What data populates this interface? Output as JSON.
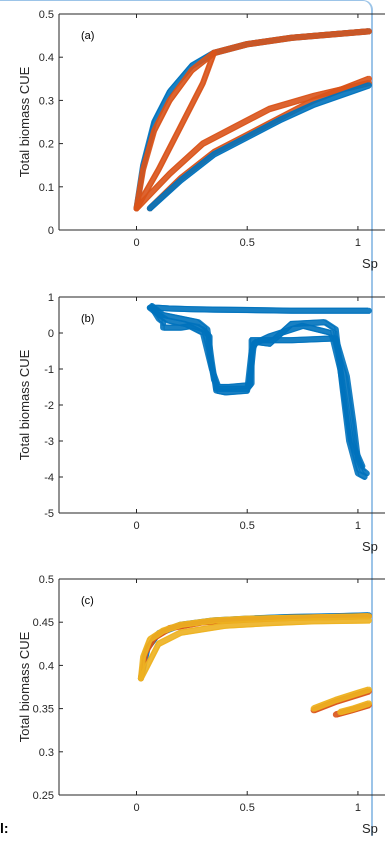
{
  "stray_text": "l:",
  "chart_data": [
    {
      "type": "line",
      "panel_label": "(a)",
      "ylabel": "Total biomass CUE",
      "xlabel": "Sp",
      "ylim": [
        0,
        0.5
      ],
      "xlim": [
        -0.35,
        1.05
      ],
      "yticks": [
        "0",
        "0.1",
        "0.2",
        "0.3",
        "0.4",
        "0.5"
      ],
      "xticks": [
        "0",
        "0.5",
        "1"
      ],
      "grid": false,
      "series": [
        {
          "color": "#0072BD",
          "x": [
            0.0,
            0.03,
            0.08,
            0.15,
            0.25,
            0.35,
            0.5,
            0.7,
            1.05
          ],
          "y": [
            0.05,
            0.15,
            0.25,
            0.32,
            0.38,
            0.41,
            0.43,
            0.445,
            0.46
          ]
        },
        {
          "color": "#D95319",
          "x": [
            0.0,
            0.03,
            0.08,
            0.15,
            0.25,
            0.35,
            0.5,
            0.7,
            1.05
          ],
          "y": [
            0.05,
            0.14,
            0.23,
            0.3,
            0.37,
            0.41,
            0.43,
            0.445,
            0.46
          ]
        },
        {
          "color": "#D95319",
          "x": [
            0.0,
            0.1,
            0.2,
            0.3,
            0.35
          ],
          "y": [
            0.05,
            0.14,
            0.24,
            0.34,
            0.41
          ]
        },
        {
          "color": "#D95319",
          "x": [
            0.06,
            0.2,
            0.35,
            0.5,
            0.65,
            0.8,
            1.05
          ],
          "y": [
            0.05,
            0.12,
            0.18,
            0.22,
            0.26,
            0.3,
            0.35
          ]
        },
        {
          "color": "#D95319",
          "x": [
            0.0,
            0.15,
            0.3,
            0.45,
            0.6,
            0.8,
            1.05
          ],
          "y": [
            0.05,
            0.13,
            0.2,
            0.24,
            0.28,
            0.31,
            0.34
          ]
        },
        {
          "color": "#0072BD",
          "x": [
            0.06,
            0.2,
            0.35,
            0.5,
            0.65,
            0.8,
            1.05
          ],
          "y": [
            0.05,
            0.115,
            0.175,
            0.215,
            0.255,
            0.29,
            0.335
          ]
        }
      ]
    },
    {
      "type": "line",
      "panel_label": "(b)",
      "ylabel": "Total biomass CUE",
      "xlabel": "Sp",
      "ylim": [
        -5,
        1
      ],
      "xlim": [
        -0.35,
        1.05
      ],
      "yticks": [
        "-5",
        "-4",
        "-3",
        "-2",
        "-1",
        "0",
        "1"
      ],
      "xticks": [
        "0",
        "0.5",
        "1"
      ],
      "grid": false,
      "series": [
        {
          "color": "#0072BD",
          "x": [
            0.06,
            0.08,
            0.1,
            0.12,
            0.12,
            0.2,
            0.25,
            0.3,
            0.33,
            0.33,
            0.35,
            0.36,
            0.36,
            0.5,
            0.52,
            0.52,
            0.7,
            0.9,
            0.95,
            0.98,
            1.0,
            1.02,
            1.04
          ],
          "y": [
            0.7,
            0.6,
            0.4,
            0.3,
            0.15,
            0.15,
            0.2,
            0.1,
            -0.1,
            -0.6,
            -1.3,
            -1.4,
            -1.55,
            -1.55,
            -1.4,
            -0.2,
            -0.2,
            -0.15,
            -1.2,
            -2.5,
            -3.5,
            -3.8,
            -3.9
          ]
        },
        {
          "color": "#0072BD",
          "x": [
            0.06,
            0.1,
            0.15,
            0.25,
            0.35,
            0.5,
            0.7,
            0.9,
            1.05
          ],
          "y": [
            0.7,
            0.7,
            0.68,
            0.66,
            0.65,
            0.64,
            0.62,
            0.62,
            0.62
          ]
        },
        {
          "color": "#0072BD",
          "x": [
            0.07,
            0.12,
            0.2,
            0.28,
            0.32,
            0.34,
            0.36,
            0.4,
            0.5,
            0.52,
            0.54,
            0.6,
            0.7,
            0.85,
            0.9,
            0.93,
            0.96,
            1.0,
            1.03
          ],
          "y": [
            0.75,
            0.5,
            0.4,
            0.3,
            0.1,
            -0.8,
            -1.6,
            -1.65,
            -1.6,
            -0.5,
            -0.25,
            -0.3,
            0.25,
            0.3,
            0.1,
            -1.5,
            -3.0,
            -3.9,
            -4.0
          ]
        },
        {
          "color": "#0072BD",
          "x": [
            0.08,
            0.14,
            0.22,
            0.3,
            0.34,
            0.37,
            0.42,
            0.51,
            0.53,
            0.6,
            0.75,
            0.88,
            0.92,
            0.97,
            1.02
          ],
          "y": [
            0.6,
            0.35,
            0.25,
            0.0,
            -1.0,
            -1.5,
            -1.5,
            -1.45,
            -0.3,
            -0.1,
            0.2,
            0.0,
            -1.0,
            -3.0,
            -3.7
          ]
        }
      ]
    },
    {
      "type": "line",
      "panel_label": "(c)",
      "ylabel": "Total biomass CUE",
      "xlabel": "Sp",
      "ylim": [
        0.25,
        0.5
      ],
      "xlim": [
        -0.35,
        1.05
      ],
      "yticks": [
        "0.25",
        "0.3",
        "0.35",
        "0.4",
        "0.45",
        "0.5"
      ],
      "xticks": [
        "0",
        "0.5",
        "1"
      ],
      "grid": false,
      "series": [
        {
          "color": "#0072BD",
          "x": [
            0.02,
            0.05,
            0.1,
            0.2,
            0.35,
            0.5,
            0.7,
            0.9,
            1.05
          ],
          "y": [
            0.385,
            0.42,
            0.437,
            0.447,
            0.452,
            0.454,
            0.456,
            0.457,
            0.458
          ]
        },
        {
          "color": "#D95319",
          "x": [
            0.02,
            0.04,
            0.08,
            0.15,
            0.3,
            0.5,
            0.7,
            0.9,
            1.05
          ],
          "y": [
            0.385,
            0.415,
            0.432,
            0.443,
            0.45,
            0.453,
            0.455,
            0.456,
            0.457
          ]
        },
        {
          "color": "#EDB120",
          "x": [
            0.02,
            0.03,
            0.06,
            0.12,
            0.2,
            0.35,
            0.5,
            0.7,
            0.9,
            1.05
          ],
          "y": [
            0.385,
            0.41,
            0.43,
            0.44,
            0.447,
            0.452,
            0.454,
            0.455,
            0.456,
            0.457
          ]
        },
        {
          "color": "#EDB120",
          "x": [
            0.02,
            0.05,
            0.1,
            0.2,
            0.4,
            0.6,
            0.8,
            1.05
          ],
          "y": [
            0.385,
            0.4,
            0.425,
            0.438,
            0.446,
            0.449,
            0.451,
            0.452
          ]
        },
        {
          "color": "#D95319",
          "x": [
            0.8,
            0.9,
            1.0,
            1.05
          ],
          "y": [
            0.348,
            0.358,
            0.366,
            0.37
          ]
        },
        {
          "color": "#EDB120",
          "x": [
            0.8,
            0.9,
            1.0,
            1.05
          ],
          "y": [
            0.35,
            0.36,
            0.368,
            0.372
          ]
        },
        {
          "color": "#D95319",
          "x": [
            0.9,
            0.97,
            1.05
          ],
          "y": [
            0.343,
            0.348,
            0.354
          ]
        },
        {
          "color": "#EDB120",
          "x": [
            0.92,
            0.98,
            1.05
          ],
          "y": [
            0.346,
            0.35,
            0.356
          ]
        }
      ]
    }
  ]
}
